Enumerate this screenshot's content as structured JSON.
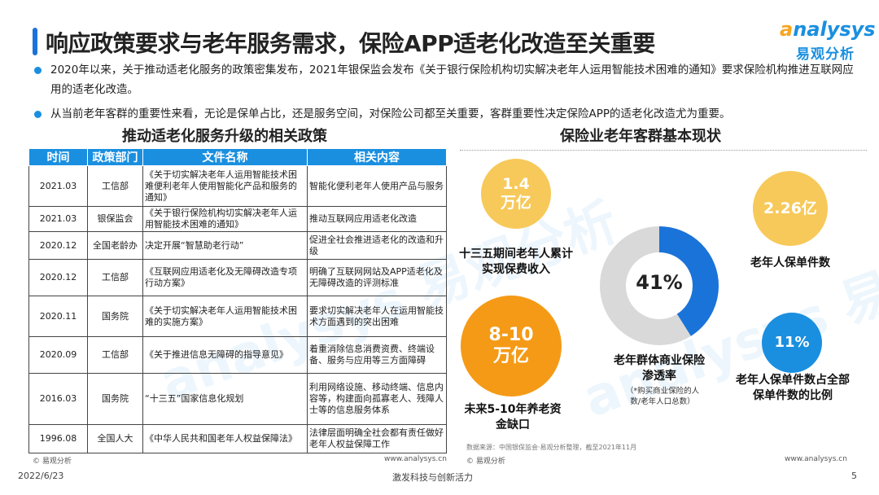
{
  "title": "响应政策要求与老年服务需求，保险APP适老化改造至关重要",
  "logo": {
    "en_a": "a",
    "en_rest": "nalysys",
    "cn": "易观分析"
  },
  "bullets": [
    "2020年以来，关于推动适老化服务的政策密集发布，2021年银保监会发布《关于银行保险机构切实解决老年人运用智能技术困难的通知》要求保险机构推进互联网应用的适老化改造。",
    "从当前老年客群的重要性来看，无论是保单占比，还是服务空间，对保险公司都至关重要，客群重要性决定保险APP的适老化改造尤为重要。"
  ],
  "left": {
    "heading": "推动适老化服务升级的相关政策",
    "columns": [
      "时间",
      "政策部门",
      "文件名称",
      "相关内容"
    ],
    "rows": [
      [
        "2021.03",
        "工信部",
        "《关于切实解决老年人运用智能技术困难便利老年人使用智能化产品和服务的通知》",
        "智能化便利老年人使用产品与服务"
      ],
      [
        "2021.03",
        "银保监会",
        "《关于银行保险机构切实解决老年人运用智能技术困难的通知》",
        "推动互联网应用适老化改造"
      ],
      [
        "2020.12",
        "全国老龄办",
        "决定开展“智慧助老行动”",
        "促进全社会推进适老化的改造和升级"
      ],
      [
        "2020.12",
        "工信部",
        "《互联网应用适老化及无障碍改造专项行动方案》",
        "明确了互联网网站及APP适老化及无障碍改造的评测标准"
      ],
      [
        "2020.11",
        "国务院",
        "《关于切实解决老年人运用智能技术困难的实施方案》",
        "要求切实解决老年人在运用智能技术方面遇到的突出困难"
      ],
      [
        "2020.09",
        "工信部",
        "《关于推进信息无障碍的指导意见》",
        "着重消除信息消费资费、终端设备、服务与应用等三方面障碍"
      ],
      [
        "2016.03",
        "国务院",
        "“十三五”国家信息化规划",
        "利用网络设施、移动终端、信息内容等，构建面向孤寡老人、残障人士等的信息服务体系"
      ],
      [
        "1996.08",
        "全国人大",
        "《中华人民共和国老年人权益保障法》",
        "法律层面明确全社会都有责任做好老年人权益保障工作"
      ]
    ],
    "copyright": "© 易观分析",
    "site": "www.analysys.cn"
  },
  "right": {
    "heading": "保险业老年客群基本现状",
    "stats": [
      {
        "value": "1.4\n万亿",
        "label": "十三五期间老年人累计实现保费收入",
        "color": "#f7c95a"
      },
      {
        "value": "8-10\n万亿",
        "label": "未来5-10年养老资金缺口",
        "color": "#f59a16"
      },
      {
        "value": "2.26亿",
        "label": "老年人保单件数",
        "color": "#f7c95a"
      },
      {
        "value": "11%",
        "label": "老年人保单件数占全部保单件数的比例",
        "color": "#1a8fe0"
      }
    ],
    "donut": {
      "value": "41%",
      "fraction": 0.41,
      "label": "老年群体商业保险渗透率",
      "note": "（*购买商业保险的人数/老年人口总数）",
      "colors": {
        "filled": "#1a73d9",
        "rest": "#d9d9d9"
      }
    },
    "source": "数据来源：中国银保监会·易观分析整理，截至2021年11月",
    "copyright": "© 易观分析",
    "site": "www.analysys.cn"
  },
  "footer": {
    "date": "2022/6/23",
    "slogan": "激发科技与创新活力",
    "page": "5"
  },
  "watermark": "analysys 易观分析"
}
